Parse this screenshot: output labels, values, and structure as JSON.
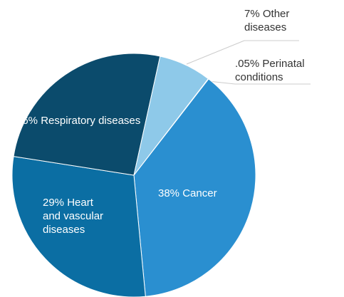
{
  "chart_data": {
    "type": "pie",
    "categories": [
      "Cancer",
      "Heart and vascular diseases",
      "Respiratory diseases",
      "Other diseases",
      "Perinatal conditions"
    ],
    "values": [
      38,
      29,
      26,
      7,
      0.05
    ],
    "value_labels": [
      "38%",
      "29%",
      "26%",
      "7%",
      ".05%"
    ],
    "colors": [
      "#2a8fd0",
      "#0b6ea3",
      "#0b4b6c",
      "#8ec9e9",
      "#0b4b6c"
    ]
  }
}
